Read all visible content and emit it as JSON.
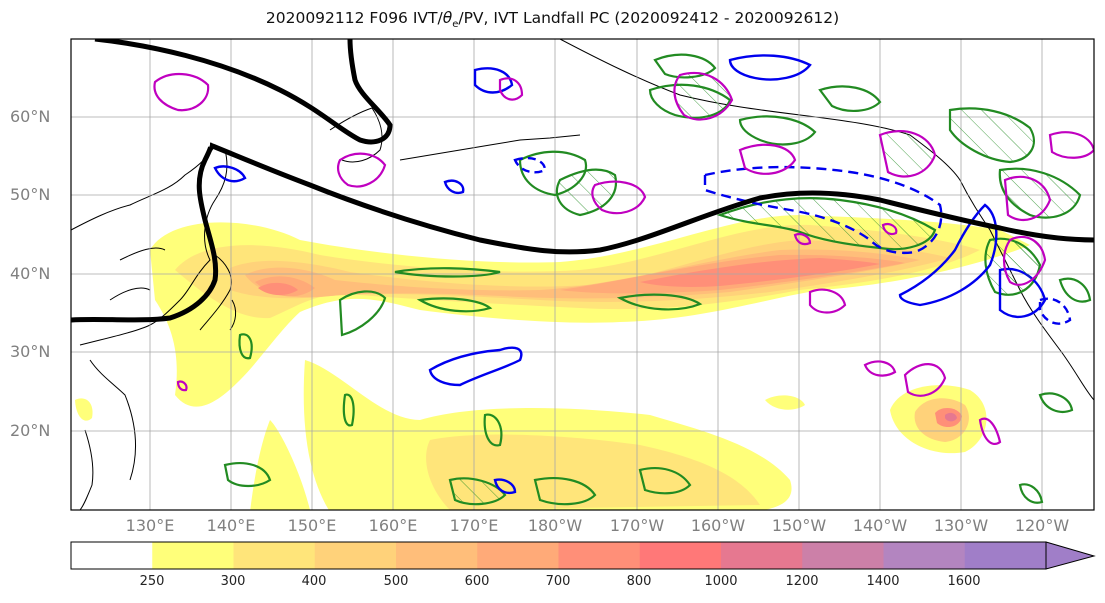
{
  "title_prefix": "2020092112 F096 IVT/",
  "title_theta": "θ",
  "title_sub": "e",
  "title_suffix": "/PV, IVT Landfall PC (2020092412 - 2020092612)",
  "lat_labels": [
    "60°N",
    "50°N",
    "40°N",
    "30°N",
    "20°N"
  ],
  "lon_labels": [
    "130°E",
    "140°E",
    "150°E",
    "160°E",
    "170°E",
    "180°W",
    "170°W",
    "160°W",
    "150°W",
    "140°W",
    "130°W",
    "120°W"
  ],
  "colorbar": {
    "levels": [
      "250",
      "300",
      "400",
      "500",
      "600",
      "700",
      "800",
      "1000",
      "1200",
      "1400",
      "1600"
    ],
    "colors": [
      "#ffffff",
      "#ffff7a",
      "#ffe57a",
      "#ffd27a",
      "#ffbe7a",
      "#ffaa78",
      "#ff8f78",
      "#ff7878",
      "#e67890",
      "#cc80a8",
      "#b385c0",
      "#a07ec8"
    ]
  },
  "legend_colors": {
    "ivt_contour_black": "#000000",
    "pv_green": "#228b22",
    "theta_blue": "#0000ee",
    "magenta": "#c000c0"
  }
}
